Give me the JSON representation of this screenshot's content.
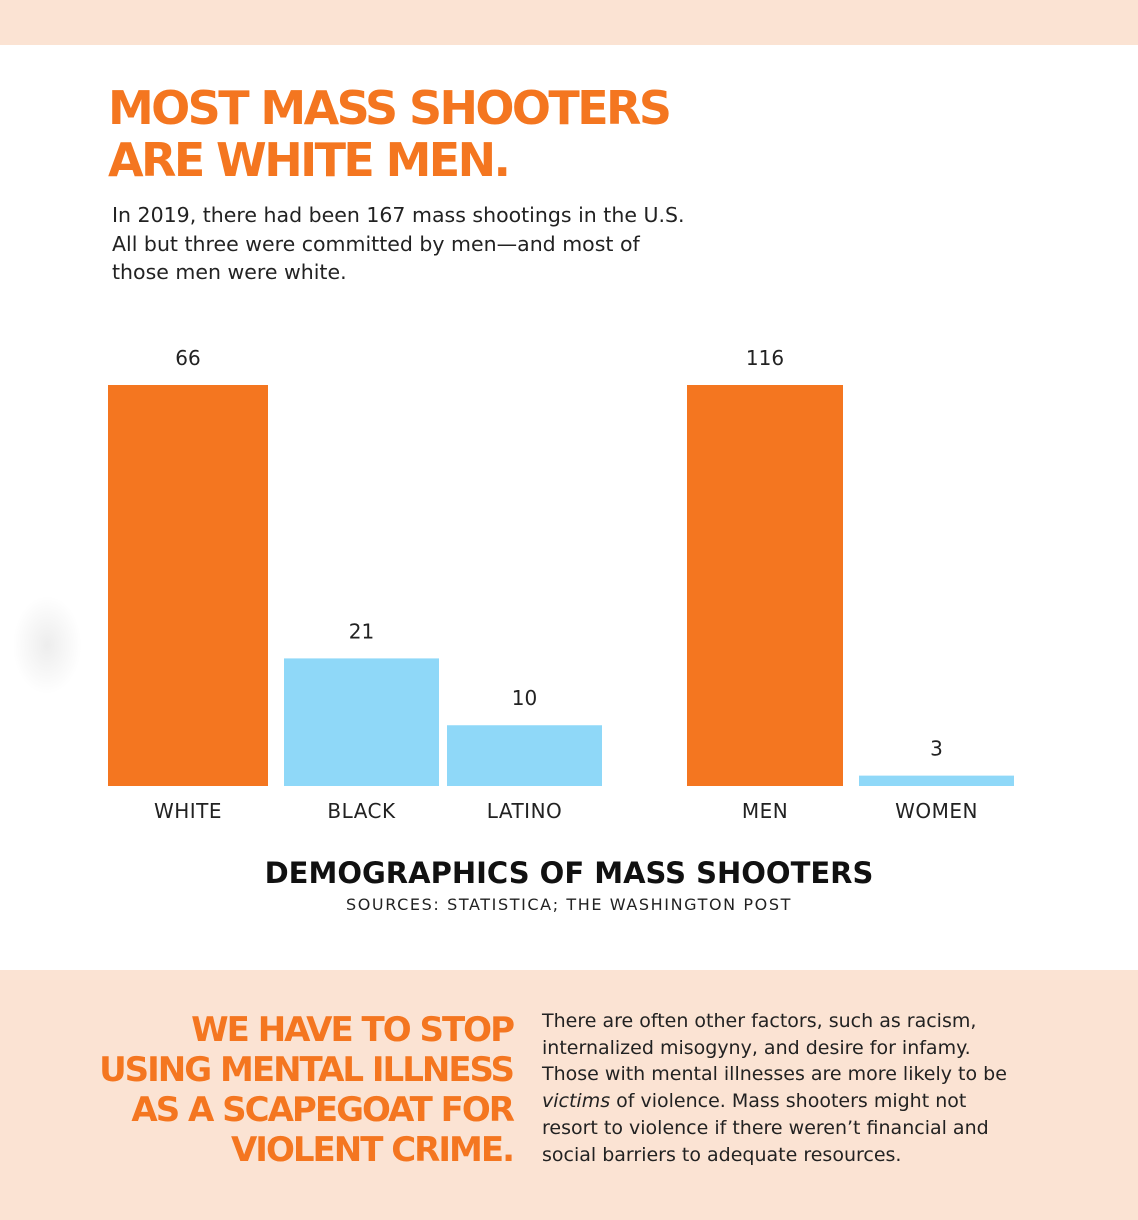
{
  "headline": {
    "lines": [
      "MOST MASS SHOOTERS",
      "ARE WHITE MEN."
    ]
  },
  "intro": {
    "lines": [
      "In 2019, there had been 167 mass shootings in the U.S.",
      "All but three were committed by men—and most of",
      "those men were white."
    ]
  },
  "colors": {
    "accent": "#f47620",
    "secondary": "#8fd8f8",
    "band": "#fbe3d3"
  },
  "chart_data": [
    {
      "type": "bar",
      "categories": [
        "WHITE",
        "BLACK",
        "LATINO"
      ],
      "values": [
        66,
        21,
        10
      ],
      "colors": [
        "#f47620",
        "#8fd8f8",
        "#8fd8f8"
      ],
      "ylim": [
        0,
        66
      ],
      "grid": false,
      "legend": "none"
    },
    {
      "type": "bar",
      "categories": [
        "MEN",
        "WOMEN"
      ],
      "values": [
        116,
        3
      ],
      "colors": [
        "#f47620",
        "#8fd8f8"
      ],
      "ylim": [
        0,
        116
      ],
      "grid": false,
      "legend": "none"
    }
  ],
  "chart_caption": {
    "title": "DEMOGRAPHICS OF MASS SHOOTERS",
    "source": "SOURCES: STATISTICA; THE WASHINGTON POST"
  },
  "callout": {
    "lines": [
      "WE HAVE TO STOP",
      "USING MENTAL ILLNESS",
      "AS A SCAPEGOAT FOR",
      "VIOLENT CRIME."
    ]
  },
  "body": {
    "line1": "There are often other factors, such as racism,",
    "line2": "internalized misogyny, and desire for infamy.",
    "line3": "Those with mental illnesses are more likely to be",
    "line4_emph": "victims",
    "line4_rest": " of violence. Mass shooters might not",
    "line5": "resort to violence if there weren’t financial and",
    "line6": "social barriers to adequate resources."
  }
}
